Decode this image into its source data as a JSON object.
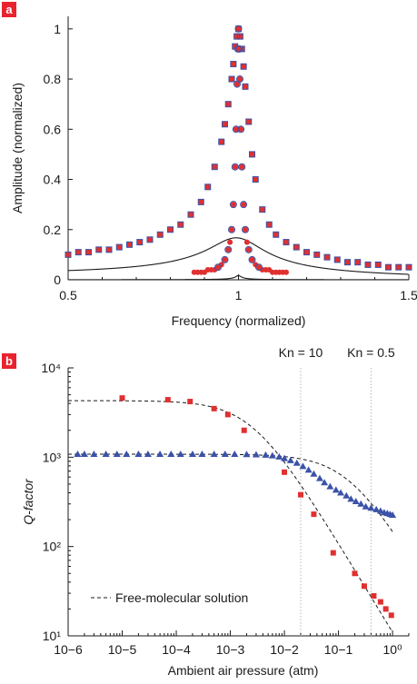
{
  "colors": {
    "red": "#e03030",
    "blue": "#3b52a8",
    "curve": "#1a1a1a",
    "panel_badge": "#e8232f",
    "vline": "#b8b8b8"
  },
  "chart_data": [
    {
      "panel": "a",
      "type": "scatter",
      "xlabel": "Frequency (normalized)",
      "ylabel": "Amplitude (normalized)",
      "xlim": [
        0.5,
        1.5
      ],
      "ylim": [
        0,
        1.05
      ],
      "xticks": [
        "0.5",
        "1",
        "1.5"
      ],
      "yticks": [
        "0",
        "0.2",
        "0.4",
        "0.6",
        "0.8",
        "1"
      ],
      "grid": false,
      "series": [
        {
          "marker": "square-filled",
          "color": "red",
          "x": [
            0.5,
            0.53,
            0.56,
            0.59,
            0.62,
            0.65,
            0.68,
            0.71,
            0.74,
            0.77,
            0.8,
            0.83,
            0.86,
            0.89,
            0.91,
            0.93,
            0.95,
            0.96,
            0.97,
            0.98,
            0.985,
            0.99,
            0.995,
            1.0,
            1.005,
            1.01,
            1.015,
            1.02,
            1.03,
            1.04,
            1.05,
            1.07,
            1.09,
            1.11,
            1.14,
            1.17,
            1.2,
            1.23,
            1.26,
            1.29,
            1.32,
            1.35,
            1.38,
            1.41,
            1.44,
            1.47,
            1.5
          ],
          "y": [
            0.1,
            0.11,
            0.11,
            0.12,
            0.12,
            0.13,
            0.14,
            0.15,
            0.16,
            0.18,
            0.2,
            0.22,
            0.26,
            0.31,
            0.37,
            0.45,
            0.55,
            0.62,
            0.7,
            0.8,
            0.86,
            0.93,
            0.97,
            1.0,
            0.97,
            0.92,
            0.85,
            0.77,
            0.63,
            0.5,
            0.4,
            0.28,
            0.22,
            0.18,
            0.15,
            0.13,
            0.11,
            0.1,
            0.09,
            0.08,
            0.07,
            0.07,
            0.06,
            0.06,
            0.05,
            0.05,
            0.05
          ]
        },
        {
          "marker": "square-open",
          "color": "blue",
          "x": [
            0.5,
            0.53,
            0.56,
            0.59,
            0.62,
            0.65,
            0.68,
            0.71,
            0.74,
            0.77,
            0.8,
            0.83,
            0.86,
            0.89,
            0.91,
            0.93,
            0.95,
            0.96,
            0.97,
            0.98,
            0.985,
            0.99,
            0.995,
            1.0,
            1.005,
            1.01,
            1.015,
            1.02,
            1.03,
            1.04,
            1.05,
            1.07,
            1.09,
            1.11,
            1.14,
            1.17,
            1.2,
            1.23,
            1.26,
            1.29,
            1.32,
            1.35,
            1.38,
            1.41,
            1.44,
            1.47,
            1.5
          ],
          "y": [
            0.1,
            0.11,
            0.11,
            0.12,
            0.12,
            0.13,
            0.14,
            0.15,
            0.16,
            0.18,
            0.2,
            0.22,
            0.26,
            0.31,
            0.37,
            0.45,
            0.55,
            0.62,
            0.7,
            0.8,
            0.86,
            0.93,
            0.97,
            1.0,
            0.97,
            0.92,
            0.85,
            0.77,
            0.63,
            0.5,
            0.4,
            0.28,
            0.22,
            0.18,
            0.15,
            0.13,
            0.11,
            0.1,
            0.09,
            0.08,
            0.07,
            0.07,
            0.06,
            0.06,
            0.05,
            0.05,
            0.05
          ]
        },
        {
          "marker": "circle-filled",
          "color": "red",
          "x": [
            0.87,
            0.88,
            0.89,
            0.9,
            0.91,
            0.92,
            0.93,
            0.94,
            0.95,
            0.96,
            0.97,
            0.975,
            0.98,
            0.985,
            0.99,
            0.993,
            0.996,
            0.998,
            1.0,
            1.002,
            1.004,
            1.007,
            1.01,
            1.015,
            1.02,
            1.025,
            1.03,
            1.04,
            1.05,
            1.06,
            1.07,
            1.08,
            1.09,
            1.1,
            1.11,
            1.12,
            1.13,
            1.14
          ],
          "y": [
            0.03,
            0.03,
            0.03,
            0.03,
            0.04,
            0.04,
            0.04,
            0.05,
            0.06,
            0.08,
            0.12,
            0.15,
            0.2,
            0.3,
            0.45,
            0.6,
            0.78,
            0.92,
            1.0,
            0.92,
            0.8,
            0.6,
            0.45,
            0.3,
            0.2,
            0.15,
            0.12,
            0.08,
            0.06,
            0.05,
            0.04,
            0.04,
            0.04,
            0.03,
            0.03,
            0.03,
            0.03,
            0.03
          ]
        },
        {
          "marker": "circle-open",
          "color": "blue",
          "x": [
            0.94,
            0.96,
            0.97,
            0.98,
            0.985,
            0.99,
            0.993,
            0.996,
            0.998,
            1.0,
            1.002,
            1.004,
            1.007,
            1.01,
            1.015,
            1.02,
            1.03,
            1.04,
            1.06
          ],
          "y": [
            0.05,
            0.08,
            0.12,
            0.2,
            0.3,
            0.45,
            0.6,
            0.78,
            0.92,
            1.0,
            0.92,
            0.8,
            0.6,
            0.45,
            0.3,
            0.2,
            0.12,
            0.08,
            0.05
          ]
        }
      ],
      "fit_curves": [
        {
          "style": "solid",
          "Q": 6
        },
        {
          "style": "solid",
          "Q": 60
        }
      ]
    },
    {
      "panel": "b",
      "type": "scatter",
      "xlabel": "Ambient air pressure (atm)",
      "ylabel": "Q-factor",
      "xscale": "log",
      "yscale": "log",
      "xlim": [
        1e-06,
        2
      ],
      "ylim": [
        10,
        10000
      ],
      "xticks": [
        "10−6",
        "10−5",
        "10−4",
        "10−3",
        "10−2",
        "10−1",
        "10⁰"
      ],
      "yticks": [
        "10¹",
        "10²",
        "10³",
        "10⁴"
      ],
      "annotations": [
        "Kn = 10",
        "Kn = 0.5"
      ],
      "annotation_x": [
        0.02,
        0.4
      ],
      "series": [
        {
          "marker": "triangle",
          "color": "blue",
          "x": [
            1.5e-06,
            2e-06,
            3e-06,
            5e-06,
            8e-06,
            1.2e-05,
            2e-05,
            3e-05,
            5e-05,
            8e-05,
            0.00012,
            0.0002,
            0.0003,
            0.0005,
            0.0008,
            0.0012,
            0.002,
            0.003,
            0.0045,
            0.006,
            0.008,
            0.01,
            0.013,
            0.017,
            0.022,
            0.028,
            0.035,
            0.045,
            0.055,
            0.07,
            0.09,
            0.11,
            0.14,
            0.17,
            0.21,
            0.26,
            0.32,
            0.4,
            0.5,
            0.6,
            0.7,
            0.8,
            0.9,
            1.0
          ],
          "y": [
            1080,
            1080,
            1080,
            1080,
            1080,
            1080,
            1080,
            1080,
            1080,
            1080,
            1080,
            1080,
            1080,
            1080,
            1080,
            1080,
            1075,
            1070,
            1060,
            1040,
            1010,
            970,
            920,
            860,
            790,
            720,
            650,
            580,
            520,
            470,
            430,
            400,
            370,
            340,
            320,
            300,
            280,
            270,
            260,
            250,
            240,
            235,
            230,
            225
          ]
        },
        {
          "marker": "square-filled",
          "color": "red",
          "x": [
            1e-05,
            7e-05,
            0.00018,
            0.0005,
            0.0009,
            0.0018,
            0.01,
            0.02,
            0.035,
            0.08,
            0.2,
            0.3,
            0.45,
            0.6,
            0.75,
            0.95
          ],
          "y": [
            4600,
            4400,
            4200,
            3500,
            3000,
            2000,
            680,
            380,
            230,
            85,
            50,
            36,
            28,
            24,
            20,
            17
          ]
        }
      ],
      "curves": [
        {
          "style": "dashed",
          "label": "Free-molecular solution"
        }
      ],
      "legend": "Free-molecular solution",
      "legend_position": "bottom-left"
    }
  ]
}
